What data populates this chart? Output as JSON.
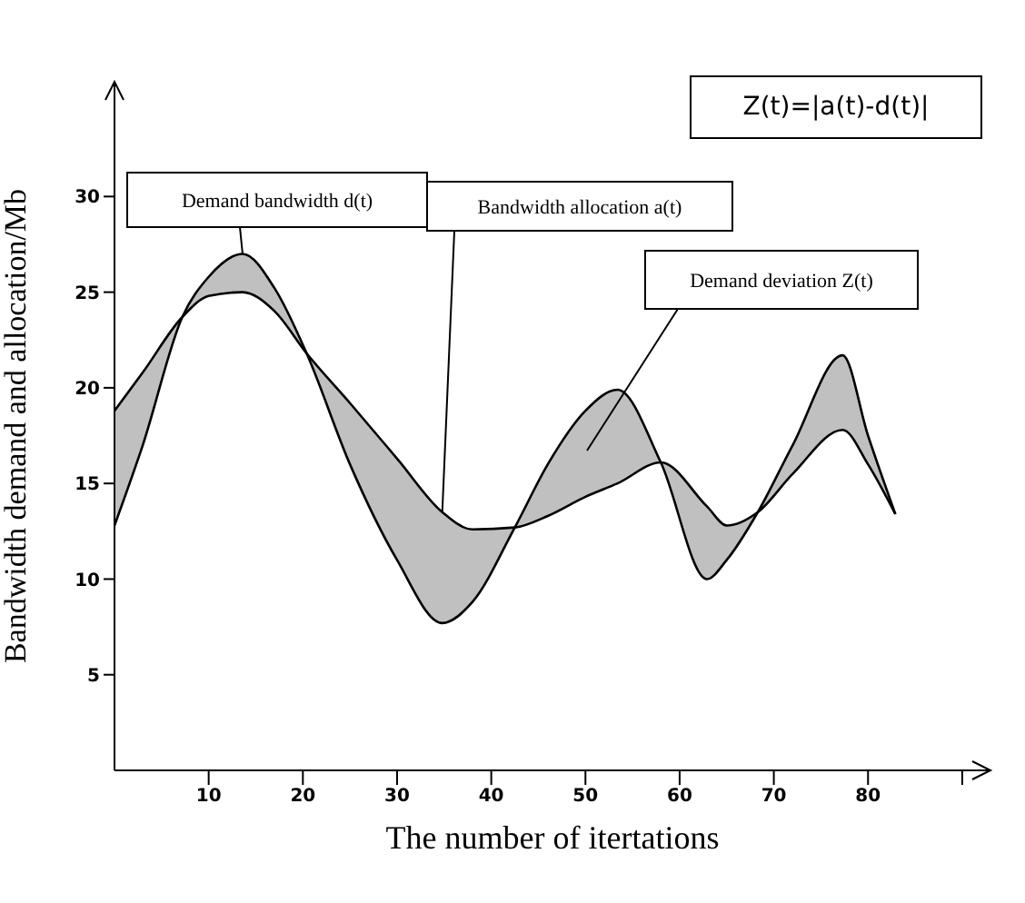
{
  "chart_data": {
    "type": "line",
    "xlabel": "The number of itertations",
    "ylabel": "Bandwidth demand and allocation/Mb",
    "x": [
      0,
      3,
      7.2,
      10,
      13.6,
      17,
      20.4,
      25,
      30,
      34.8,
      38,
      42.5,
      46,
      50,
      53.4,
      58,
      62.9,
      65,
      68.3,
      72,
      77.3,
      80,
      82.9
    ],
    "series": [
      {
        "name": "Demand bandwidth d(t)",
        "color": "#000000",
        "values": [
          12.8,
          17,
          23.7,
          25.8,
          27,
          25.2,
          21.8,
          16,
          11,
          7.7,
          8.8,
          12.7,
          16,
          18.8,
          19.9,
          16.1,
          10,
          11,
          13.5,
          17,
          21.7,
          17.5,
          13.4
        ]
      },
      {
        "name": "Bandwidth allocation a(t)",
        "color": "#000000",
        "values": [
          18.8,
          20.8,
          23.7,
          24.8,
          25,
          24,
          21.8,
          19.2,
          16.3,
          13.5,
          12.6,
          12.7,
          13.3,
          14.3,
          15,
          16.1,
          13.8,
          12.8,
          13.5,
          15.5,
          17.8,
          16,
          13.4
        ]
      }
    ],
    "annotations": [
      "Demand deviation Z(t)",
      "Z(t)=|a(t)-d(t)|"
    ],
    "xlim": [
      0,
      93
    ],
    "xticks": [
      10,
      20,
      30,
      40,
      50,
      60,
      70,
      80,
      {
        "value": 90,
        "label": null
      }
    ],
    "ylim": [
      0,
      36
    ],
    "yticks": [
      5,
      10,
      15,
      20,
      25,
      30
    ],
    "grid": false,
    "legend": false,
    "marker": "none",
    "line_style": "solid"
  }
}
